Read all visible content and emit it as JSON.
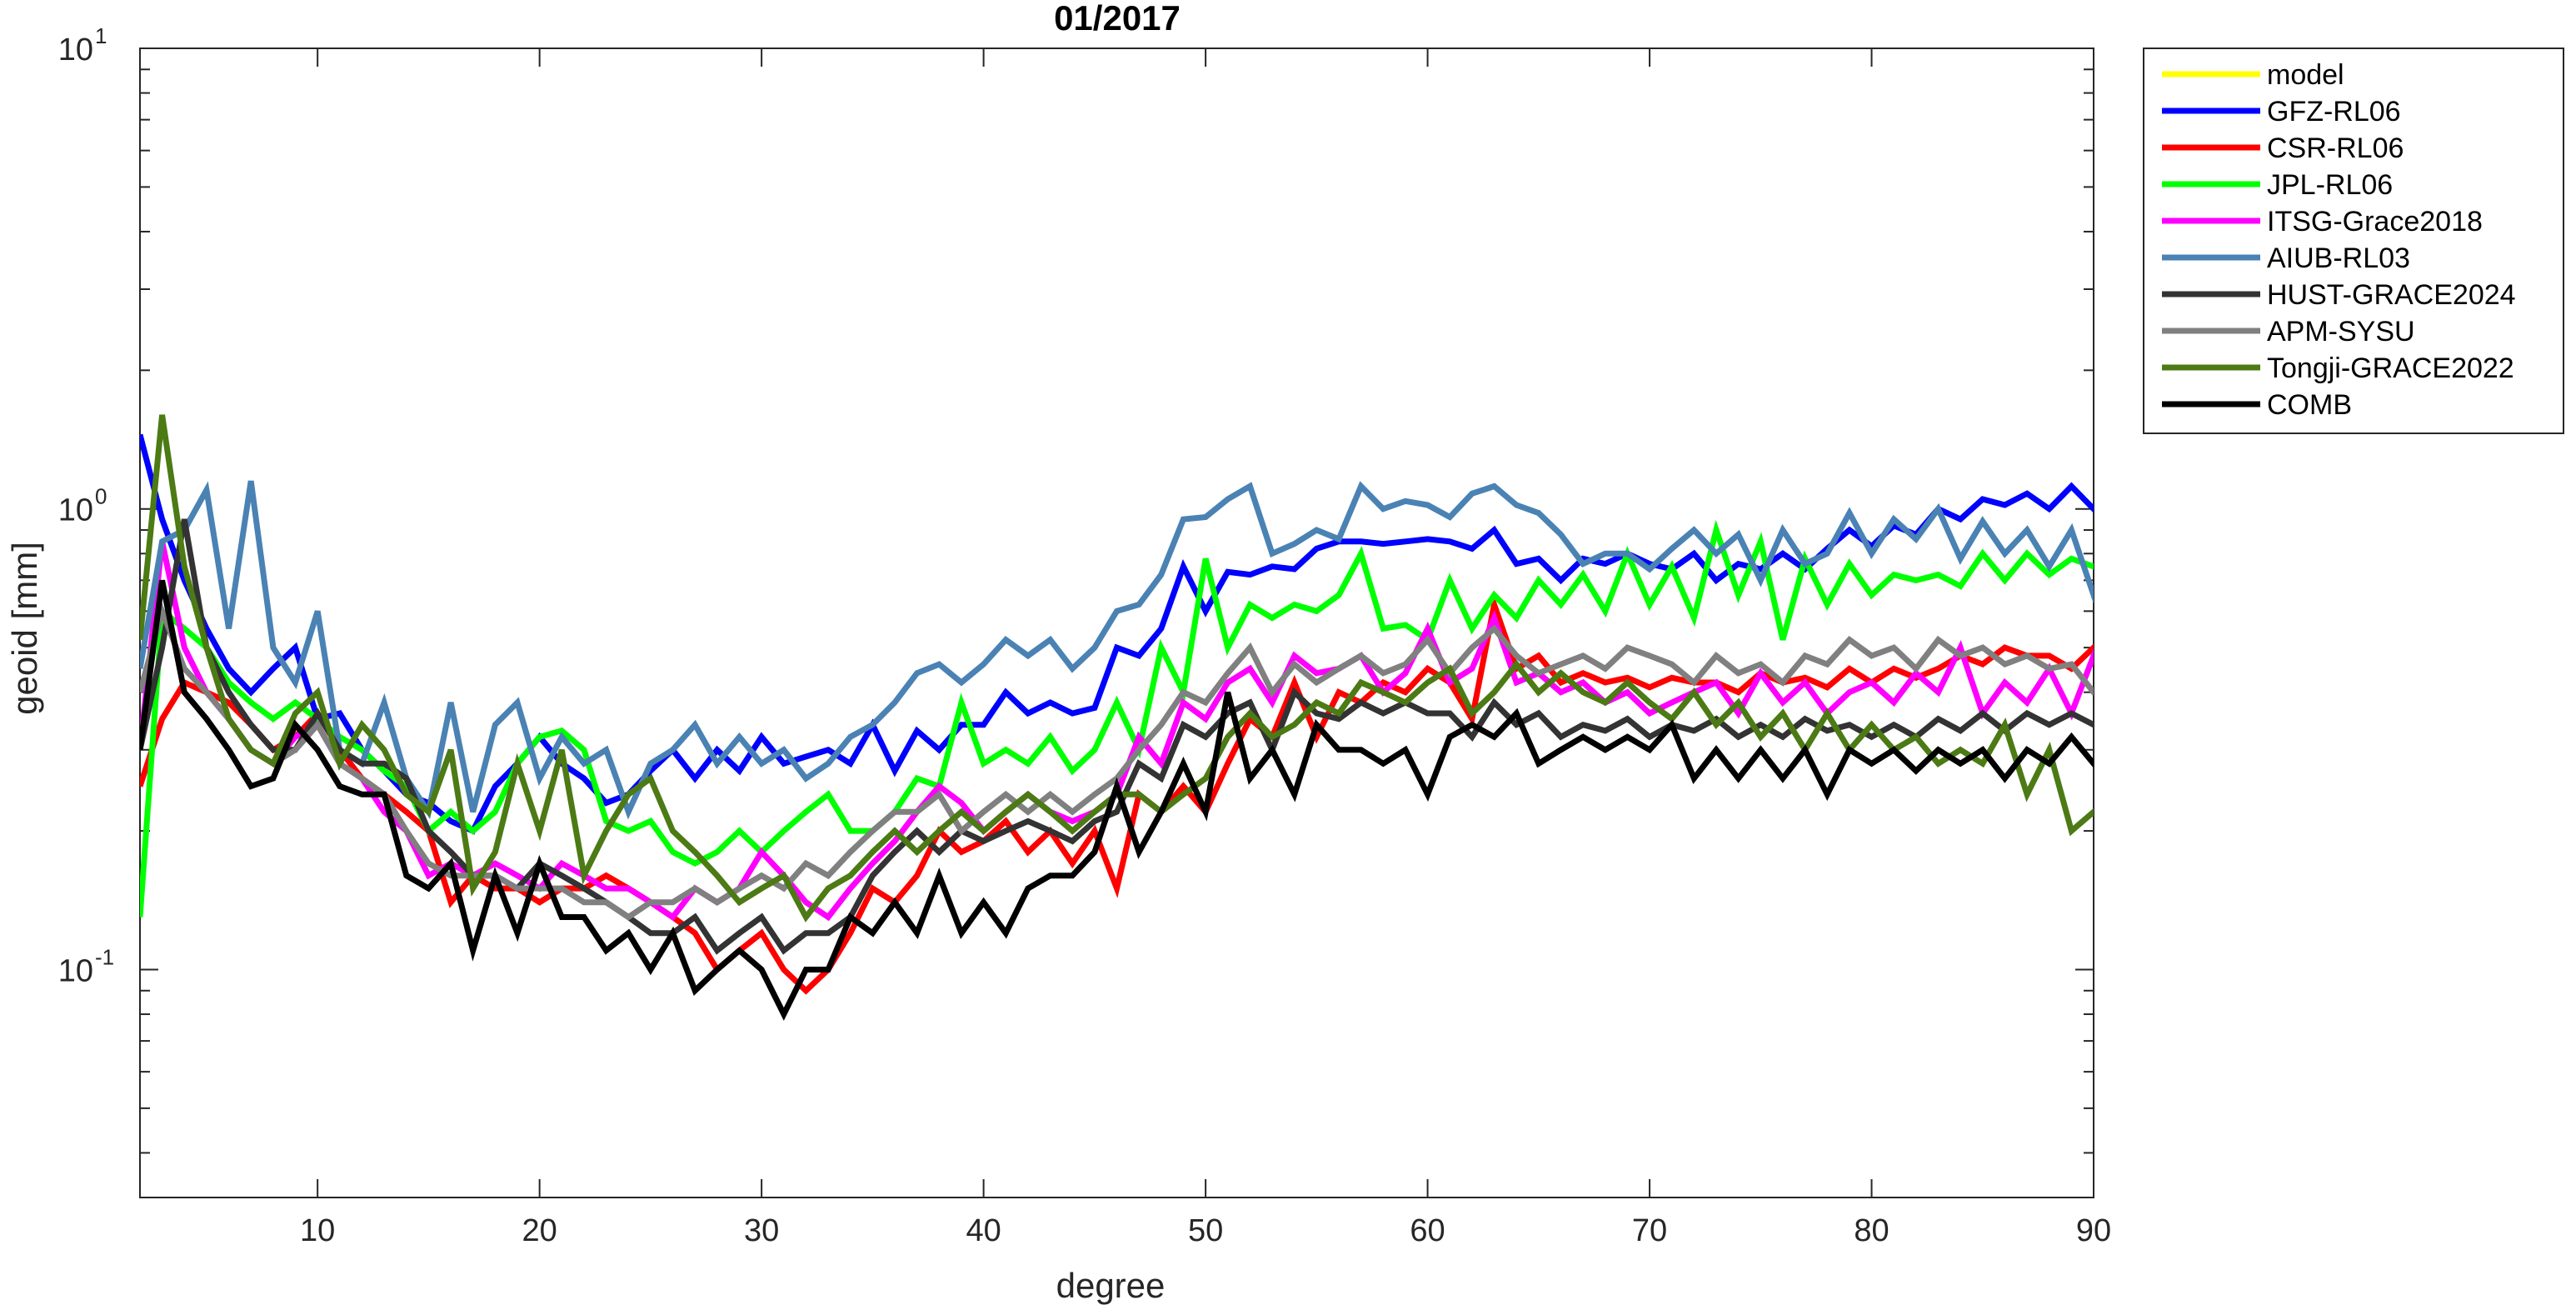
{
  "chart_data": {
    "type": "line",
    "title": "01/2017",
    "xlabel": "degree",
    "ylabel": "geoid [mm]",
    "xlim": [
      2,
      90
    ],
    "ylim": [
      0.032,
      10
    ],
    "yscale": "log",
    "grid": false,
    "legend_position": "outside-top-right",
    "xticks": [
      10,
      20,
      30,
      40,
      50,
      60,
      70,
      80,
      90
    ],
    "yticks": [
      {
        "value": 0.1,
        "base": "10",
        "exp": "-1"
      },
      {
        "value": 1,
        "base": "10",
        "exp": "0"
      },
      {
        "value": 10,
        "base": "10",
        "exp": "1"
      }
    ],
    "series": [
      {
        "name": "model",
        "color": "#ffff00",
        "values": []
      },
      {
        "name": "GFZ-RL06",
        "color": "#0000ff",
        "values": [
          1.45,
          0.95,
          0.7,
          0.55,
          0.45,
          0.4,
          0.45,
          0.5,
          0.35,
          0.36,
          0.3,
          0.27,
          0.24,
          0.23,
          0.21,
          0.2,
          0.25,
          0.28,
          0.32,
          0.28,
          0.26,
          0.23,
          0.24,
          0.27,
          0.3,
          0.26,
          0.3,
          0.27,
          0.32,
          0.28,
          0.29,
          0.3,
          0.28,
          0.34,
          0.27,
          0.33,
          0.3,
          0.34,
          0.34,
          0.4,
          0.36,
          0.38,
          0.36,
          0.37,
          0.5,
          0.48,
          0.55,
          0.75,
          0.6,
          0.73,
          0.72,
          0.75,
          0.74,
          0.82,
          0.85,
          0.85,
          0.84,
          0.85,
          0.86,
          0.85,
          0.82,
          0.9,
          0.76,
          0.78,
          0.7,
          0.78,
          0.76,
          0.8,
          0.76,
          0.74,
          0.8,
          0.7,
          0.76,
          0.74,
          0.8,
          0.74,
          0.82,
          0.9,
          0.83,
          0.92,
          0.88,
          1.0,
          0.95,
          1.05,
          1.02,
          1.08,
          1.0,
          1.12,
          1.0,
          1.15,
          0.92,
          1.15
        ]
      },
      {
        "name": "CSR-RL06",
        "color": "#ff0000",
        "values": [
          0.25,
          0.35,
          0.42,
          0.4,
          0.38,
          0.34,
          0.3,
          0.32,
          0.36,
          0.3,
          0.26,
          0.24,
          0.22,
          0.2,
          0.14,
          0.16,
          0.15,
          0.15,
          0.14,
          0.15,
          0.15,
          0.16,
          0.15,
          0.14,
          0.13,
          0.12,
          0.1,
          0.11,
          0.12,
          0.1,
          0.09,
          0.1,
          0.12,
          0.15,
          0.14,
          0.16,
          0.2,
          0.18,
          0.19,
          0.21,
          0.18,
          0.2,
          0.17,
          0.2,
          0.15,
          0.24,
          0.22,
          0.25,
          0.22,
          0.28,
          0.35,
          0.32,
          0.42,
          0.32,
          0.4,
          0.38,
          0.42,
          0.4,
          0.45,
          0.42,
          0.35,
          0.62,
          0.45,
          0.48,
          0.42,
          0.44,
          0.42,
          0.43,
          0.41,
          0.43,
          0.42,
          0.42,
          0.4,
          0.44,
          0.42,
          0.43,
          0.41,
          0.45,
          0.42,
          0.45,
          0.43,
          0.45,
          0.48,
          0.46,
          0.5,
          0.48,
          0.48,
          0.45,
          0.5,
          0.46,
          0.48,
          0.55
        ]
      },
      {
        "name": "JPL-RL06",
        "color": "#00ff00",
        "values": [
          0.13,
          0.6,
          0.55,
          0.5,
          0.42,
          0.38,
          0.35,
          0.38,
          0.35,
          0.32,
          0.3,
          0.27,
          0.25,
          0.2,
          0.22,
          0.2,
          0.22,
          0.28,
          0.32,
          0.33,
          0.3,
          0.21,
          0.2,
          0.21,
          0.18,
          0.17,
          0.18,
          0.2,
          0.18,
          0.2,
          0.22,
          0.24,
          0.2,
          0.2,
          0.22,
          0.26,
          0.25,
          0.38,
          0.28,
          0.3,
          0.28,
          0.32,
          0.27,
          0.3,
          0.38,
          0.3,
          0.5,
          0.4,
          0.78,
          0.5,
          0.62,
          0.58,
          0.62,
          0.6,
          0.65,
          0.8,
          0.55,
          0.56,
          0.52,
          0.7,
          0.55,
          0.65,
          0.58,
          0.7,
          0.62,
          0.72,
          0.6,
          0.8,
          0.62,
          0.75,
          0.58,
          0.9,
          0.65,
          0.85,
          0.52,
          0.78,
          0.62,
          0.76,
          0.65,
          0.72,
          0.7,
          0.72,
          0.68,
          0.8,
          0.7,
          0.8,
          0.72,
          0.78,
          0.75,
          0.74,
          0.72,
          0.75
        ]
      },
      {
        "name": "ITSG-Grace2018",
        "color": "#ff00ff",
        "values": [
          0.3,
          0.85,
          0.5,
          0.4,
          0.35,
          0.3,
          0.28,
          0.32,
          0.34,
          0.28,
          0.26,
          0.22,
          0.2,
          0.16,
          0.17,
          0.16,
          0.17,
          0.16,
          0.15,
          0.17,
          0.16,
          0.15,
          0.15,
          0.14,
          0.13,
          0.15,
          0.14,
          0.15,
          0.18,
          0.16,
          0.14,
          0.13,
          0.15,
          0.17,
          0.19,
          0.22,
          0.25,
          0.23,
          0.2,
          0.22,
          0.24,
          0.22,
          0.21,
          0.22,
          0.24,
          0.32,
          0.28,
          0.38,
          0.35,
          0.42,
          0.45,
          0.38,
          0.48,
          0.44,
          0.45,
          0.48,
          0.4,
          0.44,
          0.55,
          0.42,
          0.45,
          0.58,
          0.42,
          0.44,
          0.4,
          0.42,
          0.38,
          0.4,
          0.36,
          0.38,
          0.4,
          0.42,
          0.36,
          0.44,
          0.38,
          0.42,
          0.36,
          0.4,
          0.42,
          0.38,
          0.44,
          0.4,
          0.5,
          0.36,
          0.42,
          0.38,
          0.45,
          0.36,
          0.48,
          0.36,
          0.44,
          0.35
        ]
      },
      {
        "name": "AIUB-RL03",
        "color": "#4a82b4",
        "values": [
          0.45,
          0.85,
          0.9,
          1.1,
          0.55,
          1.15,
          0.5,
          0.42,
          0.6,
          0.3,
          0.28,
          0.38,
          0.26,
          0.22,
          0.38,
          0.22,
          0.34,
          0.38,
          0.26,
          0.32,
          0.28,
          0.3,
          0.22,
          0.28,
          0.3,
          0.34,
          0.28,
          0.32,
          0.28,
          0.3,
          0.26,
          0.28,
          0.32,
          0.34,
          0.38,
          0.44,
          0.46,
          0.42,
          0.46,
          0.52,
          0.48,
          0.52,
          0.45,
          0.5,
          0.6,
          0.62,
          0.72,
          0.95,
          0.96,
          1.05,
          1.12,
          0.8,
          0.84,
          0.9,
          0.86,
          1.12,
          1.0,
          1.04,
          1.02,
          0.96,
          1.08,
          1.12,
          1.02,
          0.98,
          0.88,
          0.76,
          0.8,
          0.8,
          0.74,
          0.82,
          0.9,
          0.8,
          0.88,
          0.7,
          0.9,
          0.76,
          0.8,
          0.98,
          0.8,
          0.95,
          0.86,
          1.0,
          0.78,
          0.94,
          0.8,
          0.9,
          0.75,
          0.9,
          0.65,
          0.85,
          0.62,
          0.72
        ]
      },
      {
        "name": "HUST-GRACE2024",
        "color": "#333333",
        "values": [
          0.3,
          0.5,
          0.95,
          0.5,
          0.4,
          0.34,
          0.3,
          0.3,
          0.36,
          0.3,
          0.28,
          0.28,
          0.26,
          0.2,
          0.18,
          0.16,
          0.16,
          0.15,
          0.17,
          0.16,
          0.15,
          0.14,
          0.13,
          0.12,
          0.12,
          0.13,
          0.11,
          0.12,
          0.13,
          0.11,
          0.12,
          0.12,
          0.13,
          0.16,
          0.18,
          0.2,
          0.18,
          0.2,
          0.19,
          0.2,
          0.21,
          0.2,
          0.19,
          0.21,
          0.22,
          0.28,
          0.26,
          0.34,
          0.32,
          0.36,
          0.38,
          0.3,
          0.4,
          0.36,
          0.35,
          0.38,
          0.36,
          0.38,
          0.36,
          0.36,
          0.32,
          0.38,
          0.34,
          0.36,
          0.32,
          0.34,
          0.33,
          0.35,
          0.32,
          0.34,
          0.33,
          0.35,
          0.32,
          0.34,
          0.32,
          0.35,
          0.33,
          0.34,
          0.32,
          0.34,
          0.32,
          0.35,
          0.33,
          0.36,
          0.33,
          0.36,
          0.34,
          0.36,
          0.34,
          0.36,
          0.33,
          0.36
        ]
      },
      {
        "name": "APM-SYSU",
        "color": "#808080",
        "values": [
          0.4,
          0.6,
          0.45,
          0.4,
          0.35,
          0.3,
          0.28,
          0.3,
          0.34,
          0.28,
          0.26,
          0.24,
          0.2,
          0.17,
          0.16,
          0.16,
          0.16,
          0.15,
          0.15,
          0.15,
          0.14,
          0.14,
          0.13,
          0.14,
          0.14,
          0.15,
          0.14,
          0.15,
          0.16,
          0.15,
          0.17,
          0.16,
          0.18,
          0.2,
          0.22,
          0.22,
          0.24,
          0.2,
          0.22,
          0.24,
          0.22,
          0.24,
          0.22,
          0.24,
          0.26,
          0.3,
          0.34,
          0.4,
          0.38,
          0.44,
          0.5,
          0.4,
          0.46,
          0.42,
          0.45,
          0.48,
          0.44,
          0.46,
          0.52,
          0.44,
          0.5,
          0.55,
          0.48,
          0.44,
          0.46,
          0.48,
          0.45,
          0.5,
          0.48,
          0.46,
          0.42,
          0.48,
          0.44,
          0.46,
          0.42,
          0.48,
          0.46,
          0.52,
          0.48,
          0.5,
          0.45,
          0.52,
          0.48,
          0.5,
          0.46,
          0.48,
          0.45,
          0.46,
          0.4,
          0.4,
          0.36,
          0.32
        ]
      },
      {
        "name": "Tongji-GRACE2022",
        "color": "#4c7a14",
        "values": [
          0.52,
          1.6,
          0.75,
          0.5,
          0.35,
          0.3,
          0.28,
          0.36,
          0.4,
          0.28,
          0.34,
          0.3,
          0.24,
          0.22,
          0.3,
          0.15,
          0.18,
          0.28,
          0.2,
          0.3,
          0.16,
          0.2,
          0.24,
          0.26,
          0.2,
          0.18,
          0.16,
          0.14,
          0.15,
          0.16,
          0.13,
          0.15,
          0.16,
          0.18,
          0.2,
          0.18,
          0.2,
          0.22,
          0.2,
          0.22,
          0.24,
          0.22,
          0.2,
          0.22,
          0.24,
          0.24,
          0.22,
          0.24,
          0.26,
          0.32,
          0.36,
          0.32,
          0.34,
          0.38,
          0.36,
          0.42,
          0.4,
          0.38,
          0.42,
          0.45,
          0.36,
          0.4,
          0.46,
          0.4,
          0.44,
          0.4,
          0.38,
          0.42,
          0.38,
          0.35,
          0.4,
          0.34,
          0.38,
          0.32,
          0.36,
          0.3,
          0.36,
          0.3,
          0.34,
          0.3,
          0.32,
          0.28,
          0.3,
          0.28,
          0.34,
          0.24,
          0.3,
          0.2,
          0.22,
          0.19,
          0.18,
          0.16
        ]
      },
      {
        "name": "COMB",
        "color": "#000000",
        "values": [
          0.3,
          0.7,
          0.4,
          0.35,
          0.3,
          0.25,
          0.26,
          0.34,
          0.3,
          0.25,
          0.24,
          0.24,
          0.16,
          0.15,
          0.17,
          0.11,
          0.16,
          0.12,
          0.17,
          0.13,
          0.13,
          0.11,
          0.12,
          0.1,
          0.12,
          0.09,
          0.1,
          0.11,
          0.1,
          0.08,
          0.1,
          0.1,
          0.13,
          0.12,
          0.14,
          0.12,
          0.16,
          0.12,
          0.14,
          0.12,
          0.15,
          0.16,
          0.16,
          0.18,
          0.25,
          0.18,
          0.22,
          0.28,
          0.22,
          0.4,
          0.26,
          0.3,
          0.24,
          0.34,
          0.3,
          0.3,
          0.28,
          0.3,
          0.24,
          0.32,
          0.34,
          0.32,
          0.36,
          0.28,
          0.3,
          0.32,
          0.3,
          0.32,
          0.3,
          0.34,
          0.26,
          0.3,
          0.26,
          0.3,
          0.26,
          0.3,
          0.24,
          0.3,
          0.28,
          0.3,
          0.27,
          0.3,
          0.28,
          0.3,
          0.26,
          0.3,
          0.28,
          0.32,
          0.28,
          0.3,
          0.28,
          0.3
        ]
      }
    ]
  }
}
